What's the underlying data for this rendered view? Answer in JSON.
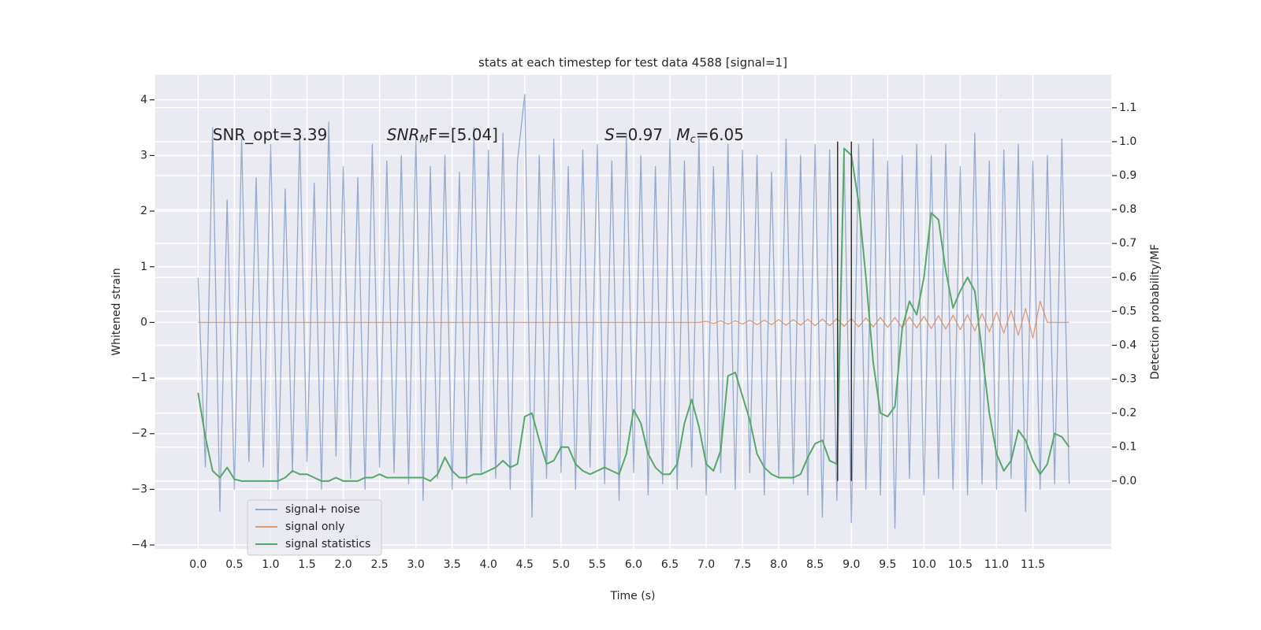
{
  "chart_data": {
    "type": "line",
    "title": "stats at each timestep for test data 4588 [signal=1]",
    "xlabel": "Time (s)",
    "ylabel": "Whitened strain",
    "y2label": "Detection probability/MF",
    "grid": true,
    "legend": "lower left",
    "xlim": [
      -0.59,
      12.58
    ],
    "ylim": [
      -4.07,
      4.45
    ],
    "y2lim": [
      -0.2,
      1.197
    ],
    "xticks": [
      {
        "value": 0,
        "label": "0.0"
      },
      {
        "value": 0.5,
        "label": "0.5"
      },
      {
        "value": 1,
        "label": "1.0"
      },
      {
        "value": 1.5,
        "label": "1.5"
      },
      {
        "value": 2,
        "label": "2.0"
      },
      {
        "value": 2.5,
        "label": "2.5"
      },
      {
        "value": 3,
        "label": "3.0"
      },
      {
        "value": 3.5,
        "label": "3.5"
      },
      {
        "value": 4,
        "label": "4.0"
      },
      {
        "value": 4.5,
        "label": "4.5"
      },
      {
        "value": 5,
        "label": "5.0"
      },
      {
        "value": 5.5,
        "label": "5.5"
      },
      {
        "value": 6,
        "label": "6.0"
      },
      {
        "value": 6.5,
        "label": "6.5"
      },
      {
        "value": 7,
        "label": "7.0"
      },
      {
        "value": 7.5,
        "label": "7.5"
      },
      {
        "value": 8,
        "label": "8.0"
      },
      {
        "value": 8.5,
        "label": "8.5"
      },
      {
        "value": 9,
        "label": "9.0"
      },
      {
        "value": 9.5,
        "label": "9.5"
      },
      {
        "value": 10,
        "label": "10.0"
      },
      {
        "value": 10.5,
        "label": "10.5"
      },
      {
        "value": 11,
        "label": "11.0"
      },
      {
        "value": 11.5,
        "label": "11.5"
      }
    ],
    "yticks": [
      {
        "value": -4,
        "label": "−4"
      },
      {
        "value": -3,
        "label": "−3"
      },
      {
        "value": -2,
        "label": "−2"
      },
      {
        "value": -1,
        "label": "−1"
      },
      0,
      1,
      2,
      3,
      4
    ],
    "y2ticks": [
      {
        "value": 0,
        "label": "0.0"
      },
      0.1,
      0.2,
      0.3,
      0.4,
      0.5,
      0.6,
      0.7,
      0.8,
      0.9,
      {
        "value": 1,
        "label": "1.0"
      },
      1.1
    ],
    "x": [
      0,
      0.1,
      0.2,
      0.3,
      0.4,
      0.5,
      0.6,
      0.7,
      0.8,
      0.9,
      1,
      1.1,
      1.2,
      1.3,
      1.4,
      1.5,
      1.6,
      1.7,
      1.8,
      1.9,
      2,
      2.1,
      2.2,
      2.3,
      2.4,
      2.5,
      2.6,
      2.7,
      2.8,
      2.9,
      3,
      3.1,
      3.2,
      3.3,
      3.4,
      3.5,
      3.6,
      3.7,
      3.8,
      3.9,
      4,
      4.1,
      4.2,
      4.3,
      4.4,
      4.5,
      4.6,
      4.7,
      4.8,
      4.9,
      5,
      5.1,
      5.2,
      5.3,
      5.4,
      5.5,
      5.6,
      5.7,
      5.8,
      5.9,
      6,
      6.1,
      6.2,
      6.3,
      6.4,
      6.5,
      6.6,
      6.7,
      6.8,
      6.9,
      7,
      7.1,
      7.2,
      7.3,
      7.4,
      7.5,
      7.6,
      7.7,
      7.8,
      7.9,
      8,
      8.1,
      8.2,
      8.3,
      8.4,
      8.5,
      8.6,
      8.7,
      8.8,
      8.9,
      9,
      9.1,
      9.2,
      9.3,
      9.4,
      9.5,
      9.6,
      9.7,
      9.8,
      9.9,
      10,
      10.1,
      10.2,
      10.3,
      10.4,
      10.5,
      10.6,
      10.7,
      10.8,
      10.9,
      11,
      11.1,
      11.2,
      11.3,
      11.4,
      11.5,
      11.6,
      11.7,
      11.8,
      11.9,
      12
    ],
    "series": [
      {
        "name": "signal+ noise",
        "color": "#4c72b0",
        "opacity": 0.55,
        "values": [
          0.8,
          -2.6,
          3.5,
          -3.4,
          2.2,
          -3.0,
          3.3,
          -2.5,
          2.6,
          -2.6,
          3.2,
          -3.0,
          2.4,
          -2.7,
          3.4,
          -2.5,
          2.5,
          -3.0,
          3.6,
          -2.4,
          2.8,
          -2.8,
          2.6,
          -3.0,
          3.2,
          -2.6,
          2.9,
          -2.7,
          3.0,
          -2.9,
          3.3,
          -3.2,
          2.8,
          -2.8,
          3.0,
          -3.0,
          2.7,
          -2.9,
          3.5,
          -2.7,
          3.1,
          -2.8,
          3.4,
          -3.0,
          2.9,
          4.1,
          -3.5,
          3.0,
          -2.8,
          3.3,
          -2.7,
          2.8,
          -3.0,
          3.1,
          -2.6,
          3.2,
          -2.9,
          2.9,
          -3.2,
          3.4,
          -2.7,
          3.0,
          -3.1,
          2.8,
          -2.9,
          3.3,
          -3.0,
          2.9,
          -2.6,
          3.3,
          -3.1,
          2.8,
          -2.7,
          3.2,
          -3.0,
          3.1,
          -2.7,
          3.0,
          -3.1,
          2.7,
          -2.8,
          3.3,
          -2.9,
          3.0,
          -3.1,
          3.2,
          -3.5,
          3.1,
          -3.2,
          3.0,
          -3.6,
          3.2,
          -3.0,
          3.3,
          -3.1,
          2.9,
          -3.7,
          3.0,
          -2.8,
          3.2,
          -3.1,
          3.0,
          -2.8,
          3.2,
          -3.0,
          2.8,
          -3.1,
          3.4,
          -2.9,
          2.9,
          -3.0,
          3.1,
          -2.8,
          3.2,
          -3.4,
          2.9,
          -3.0,
          3.0,
          -2.9,
          3.3,
          -2.9
        ]
      },
      {
        "name": "signal only",
        "color": "#dd8452",
        "opacity": 0.8,
        "values": [
          0,
          0,
          0,
          0,
          0,
          0,
          0,
          0,
          0,
          0,
          0,
          0,
          0,
          0,
          0,
          0,
          0,
          0,
          0,
          0,
          0,
          0,
          0,
          0,
          0,
          0,
          0,
          0,
          0,
          0,
          0,
          0,
          0,
          0,
          0,
          0,
          0,
          0,
          0,
          0,
          0,
          0,
          0,
          0,
          0,
          0,
          0,
          0,
          0,
          0,
          0,
          0,
          0,
          0,
          0,
          0,
          0,
          0,
          0,
          0,
          0,
          0,
          0,
          0,
          0,
          0,
          0,
          0,
          0,
          0,
          0.02,
          -0.02,
          0.03,
          -0.03,
          0.03,
          -0.03,
          0.04,
          -0.04,
          0.04,
          -0.04,
          0.05,
          -0.05,
          0.05,
          -0.05,
          0.06,
          -0.06,
          0.06,
          -0.06,
          0.07,
          -0.07,
          0.07,
          -0.08,
          0.08,
          -0.08,
          0.09,
          -0.09,
          0.09,
          -0.1,
          0.1,
          -0.1,
          0.11,
          -0.11,
          0.12,
          -0.12,
          0.13,
          -0.13,
          0.14,
          -0.15,
          0.16,
          -0.17,
          0.18,
          -0.19,
          0.21,
          -0.23,
          0.25,
          -0.28,
          0.38,
          0,
          0,
          0,
          0
        ]
      },
      {
        "name": "signal statistics",
        "color": "#55a868",
        "opacity": 1,
        "axis": "y2",
        "values": [
          0.26,
          0.13,
          0.03,
          0.01,
          0.04,
          0.005,
          0,
          0,
          0,
          0,
          0,
          0,
          0.01,
          0.03,
          0.02,
          0.02,
          0.01,
          0,
          0,
          0.01,
          0,
          0,
          0,
          0.01,
          0.01,
          0.02,
          0.01,
          0.01,
          0.01,
          0.01,
          0.01,
          0.01,
          0,
          0.02,
          0.07,
          0.03,
          0.01,
          0.01,
          0.02,
          0.02,
          0.03,
          0.04,
          0.06,
          0.04,
          0.05,
          0.19,
          0.2,
          0.12,
          0.05,
          0.06,
          0.1,
          0.1,
          0.05,
          0.03,
          0.02,
          0.03,
          0.04,
          0.03,
          0.02,
          0.08,
          0.21,
          0.17,
          0.08,
          0.04,
          0.02,
          0.02,
          0.05,
          0.17,
          0.24,
          0.16,
          0.05,
          0.03,
          0.09,
          0.31,
          0.32,
          0.25,
          0.18,
          0.08,
          0.04,
          0.02,
          0.01,
          0.01,
          0.01,
          0.02,
          0.07,
          0.11,
          0.12,
          0.06,
          0.05,
          0.98,
          0.96,
          0.82,
          0.6,
          0.35,
          0.2,
          0.19,
          0.22,
          0.45,
          0.53,
          0.49,
          0.6,
          0.79,
          0.77,
          0.62,
          0.51,
          0.56,
          0.6,
          0.56,
          0.38,
          0.2,
          0.08,
          0.03,
          0.06,
          0.15,
          0.12,
          0.06,
          0.02,
          0.05,
          0.14,
          0.13,
          0.1
        ]
      }
    ],
    "vlines": [
      {
        "x": 8.81,
        "ymin": -2.85,
        "ymax": 3.25,
        "color": "#333333"
      },
      {
        "x": 9.0,
        "ymin": -2.85,
        "ymax": 3.25,
        "color": "#333333"
      }
    ],
    "annotations": [
      {
        "x": 0.2,
        "y": 3.36,
        "parts": [
          {
            "text": "SNR_opt=3.39"
          }
        ]
      },
      {
        "x": 2.6,
        "y": 3.36,
        "parts": [
          {
            "text": "SNR",
            "italic": true
          },
          {
            "text": "M",
            "italic": true,
            "sub": true
          },
          {
            "text": "F=[5.04]"
          }
        ]
      },
      {
        "x": 5.6,
        "y": 3.36,
        "parts": [
          {
            "text": "S",
            "italic": true
          },
          {
            "text": "=0.97"
          }
        ]
      },
      {
        "x": 6.59,
        "y": 3.36,
        "parts": [
          {
            "text": "M",
            "italic": true
          },
          {
            "text": "c",
            "italic": true,
            "sub": true
          },
          {
            "text": "=6.05"
          }
        ]
      }
    ]
  }
}
